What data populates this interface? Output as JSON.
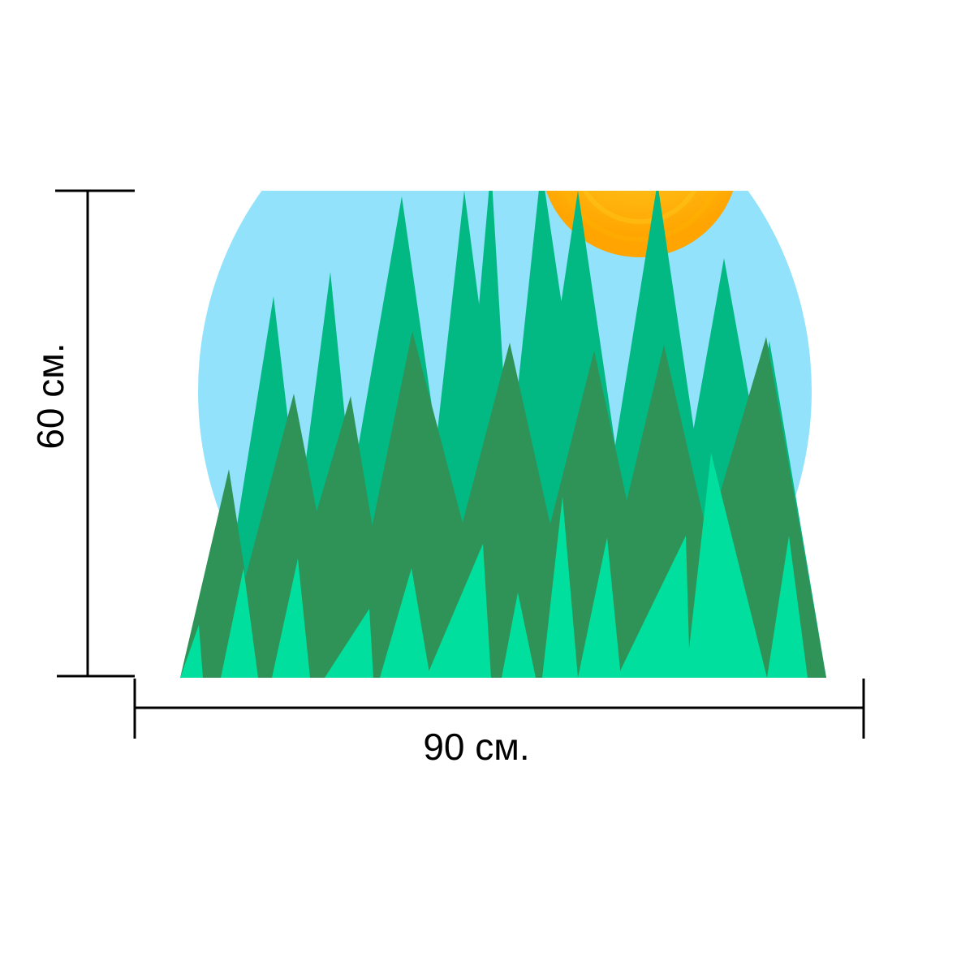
{
  "dimensions": {
    "height_label": "60 см.",
    "width_label": "90 см."
  },
  "illustration": {
    "subject": "grass-and-sun",
    "colors": {
      "sky": "#92e2fb",
      "sun_outer": "#ffae00",
      "sun_inner": "#ffe94a",
      "grass_back": "#02b883",
      "grass_mid": "#2f9357",
      "grass_front": "#00df9d",
      "outline": "#000000",
      "background": "#ffffff"
    }
  }
}
